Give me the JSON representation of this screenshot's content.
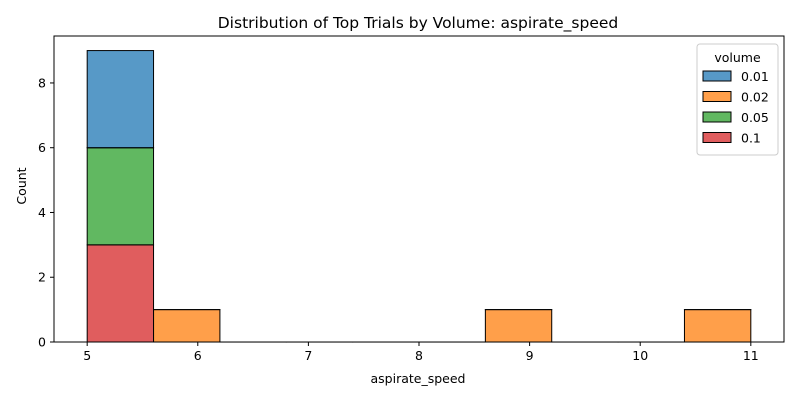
{
  "chart_data": {
    "type": "bar",
    "title": "Distribution of Top Trials by Volume: aspirate_speed",
    "xlabel": "aspirate_speed",
    "ylabel": "Count",
    "xlim": [
      4.7,
      11.3
    ],
    "ylim": [
      0,
      9.45
    ],
    "x_ticks": [
      5,
      6,
      7,
      8,
      9,
      10,
      11
    ],
    "y_ticks": [
      0,
      2,
      4,
      6,
      8
    ],
    "bin_edges": [
      5.0,
      5.6,
      6.2,
      6.8,
      7.4,
      8.0,
      8.6,
      9.2,
      9.8,
      10.4,
      11.0
    ],
    "stacked": true,
    "legend": {
      "title": "volume",
      "placement": "top-right"
    },
    "series": [
      {
        "name": "0.1",
        "color": "#d62728",
        "values": [
          3,
          0,
          0,
          0,
          0,
          0,
          0,
          0,
          0,
          0
        ]
      },
      {
        "name": "0.05",
        "color": "#2ca02c",
        "values": [
          3,
          0,
          0,
          0,
          0,
          0,
          0,
          0,
          0,
          0
        ]
      },
      {
        "name": "0.02",
        "color": "#ff7f0e",
        "values": [
          0,
          1,
          0,
          0,
          0,
          0,
          1,
          0,
          0,
          1
        ]
      },
      {
        "name": "0.01",
        "color": "#1f77b4",
        "values": [
          3,
          0,
          0,
          0,
          0,
          0,
          0,
          0,
          0,
          0
        ]
      }
    ],
    "legend_order": [
      "0.01",
      "0.02",
      "0.05",
      "0.1"
    ],
    "grid": false
  }
}
